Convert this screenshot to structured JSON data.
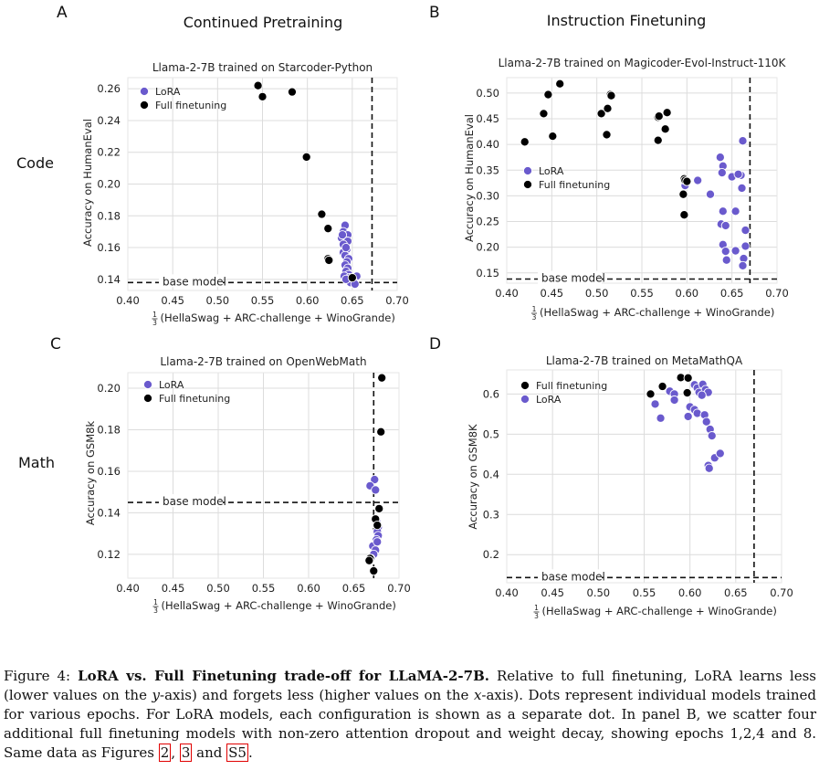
{
  "figure": {
    "panel_letters": [
      "A",
      "B",
      "C",
      "D"
    ],
    "column_titles": [
      "Continued Pretraining",
      "Instruction Finetuning"
    ],
    "row_labels": [
      "Code",
      "Math"
    ],
    "colors": {
      "lora": "#6a5acd",
      "full": "#000000",
      "grid": "#dcdcdc",
      "axis": "#333333"
    },
    "xlabel_frac": "1",
    "xlabel_frac_den": "3",
    "xlabel_text": "(HellaSwag + ARC-challenge + WinoGrande)",
    "legend_lora": "LoRA",
    "legend_full": "Full finetuning",
    "base_model_label": "base model"
  },
  "chart_data": [
    {
      "panel": "A",
      "type": "scatter",
      "title": "Llama-2-7B trained on Starcoder-Python",
      "xlabel": "1/3(HellaSwag + ARC-challenge + WinoGrande)",
      "ylabel": "Accuracy on HumanEval",
      "xlim": [
        0.4,
        0.7
      ],
      "ylim": [
        0.133,
        0.267
      ],
      "xticks": [
        0.4,
        0.45,
        0.5,
        0.55,
        0.6,
        0.65,
        0.7
      ],
      "xtick_labels": [
        "0.40",
        "0.45",
        "0.50",
        "0.55",
        "0.60",
        "0.65",
        "0.70"
      ],
      "yticks": [
        0.14,
        0.16,
        0.18,
        0.2,
        0.22,
        0.24,
        0.26
      ],
      "ytick_labels": [
        "0.14",
        "0.16",
        "0.18",
        "0.20",
        "0.22",
        "0.24",
        "0.26"
      ],
      "baseline_y": 0.138,
      "baseline_x": 0.672,
      "legend_order": [
        "lora",
        "full"
      ],
      "series": [
        {
          "name": "LoRA",
          "key": "lora",
          "points": [
            [
              0.642,
              0.174
            ],
            [
              0.64,
              0.17
            ],
            [
              0.645,
              0.168
            ],
            [
              0.638,
              0.166
            ],
            [
              0.643,
              0.163
            ],
            [
              0.641,
              0.161
            ],
            [
              0.644,
              0.159
            ],
            [
              0.64,
              0.157
            ],
            [
              0.642,
              0.155
            ],
            [
              0.646,
              0.153
            ],
            [
              0.644,
              0.151
            ],
            [
              0.642,
              0.149
            ],
            [
              0.645,
              0.147
            ],
            [
              0.643,
              0.145
            ],
            [
              0.646,
              0.143
            ],
            [
              0.641,
              0.142
            ],
            [
              0.649,
              0.14
            ],
            [
              0.655,
              0.142
            ],
            [
              0.651,
              0.139
            ],
            [
              0.648,
              0.138
            ],
            [
              0.653,
              0.137
            ],
            [
              0.647,
              0.141
            ],
            [
              0.643,
              0.14
            ],
            [
              0.639,
              0.168
            ],
            [
              0.645,
              0.164
            ],
            [
              0.64,
              0.162
            ],
            [
              0.643,
              0.16
            ]
          ]
        },
        {
          "name": "Full finetuning",
          "key": "full",
          "points": [
            [
              0.545,
              0.262
            ],
            [
              0.55,
              0.255
            ],
            [
              0.583,
              0.258
            ],
            [
              0.599,
              0.217
            ],
            [
              0.616,
              0.181
            ],
            [
              0.623,
              0.172
            ],
            [
              0.623,
              0.153
            ],
            [
              0.624,
              0.152
            ],
            [
              0.65,
              0.141
            ]
          ]
        }
      ]
    },
    {
      "panel": "B",
      "type": "scatter",
      "title": "Llama-2-7B trained on Magicoder-Evol-Instruct-110K",
      "xlabel": "1/3(HellaSwag + ARC-challenge + WinoGrande)",
      "ylabel": "Accuracy on HumanEval",
      "xlim": [
        0.4,
        0.7
      ],
      "ylim": [
        0.13,
        0.53
      ],
      "xticks": [
        0.4,
        0.45,
        0.5,
        0.55,
        0.6,
        0.65,
        0.7
      ],
      "xtick_labels": [
        "0.40",
        "0.45",
        "0.50",
        "0.55",
        "0.60",
        "0.65",
        "0.70"
      ],
      "yticks": [
        0.15,
        0.2,
        0.25,
        0.3,
        0.35,
        0.4,
        0.45,
        0.5
      ],
      "ytick_labels": [
        "0.15",
        "0.20",
        "0.25",
        "0.30",
        "0.35",
        "0.40",
        "0.45",
        "0.50"
      ],
      "baseline_y": 0.138,
      "baseline_x": 0.67,
      "legend_order": [
        "lora",
        "full"
      ],
      "series": [
        {
          "name": "LoRA",
          "key": "lora",
          "points": [
            [
              0.662,
              0.407
            ],
            [
              0.637,
              0.375
            ],
            [
              0.64,
              0.358
            ],
            [
              0.639,
              0.345
            ],
            [
              0.65,
              0.337
            ],
            [
              0.66,
              0.34
            ],
            [
              0.657,
              0.342
            ],
            [
              0.661,
              0.315
            ],
            [
              0.612,
              0.33
            ],
            [
              0.626,
              0.303
            ],
            [
              0.6,
              0.327
            ],
            [
              0.598,
              0.32
            ],
            [
              0.64,
              0.27
            ],
            [
              0.654,
              0.27
            ],
            [
              0.638,
              0.245
            ],
            [
              0.643,
              0.242
            ],
            [
              0.665,
              0.233
            ],
            [
              0.64,
              0.205
            ],
            [
              0.643,
              0.192
            ],
            [
              0.654,
              0.193
            ],
            [
              0.665,
              0.202
            ],
            [
              0.663,
              0.178
            ],
            [
              0.644,
              0.175
            ],
            [
              0.662,
              0.164
            ]
          ]
        },
        {
          "name": "Full finetuning",
          "key": "full",
          "points": [
            [
              0.42,
              0.405
            ],
            [
              0.441,
              0.46
            ],
            [
              0.446,
              0.497
            ],
            [
              0.459,
              0.518
            ],
            [
              0.451,
              0.416
            ],
            [
              0.505,
              0.46
            ],
            [
              0.512,
              0.47
            ],
            [
              0.515,
              0.497
            ],
            [
              0.516,
              0.495
            ],
            [
              0.511,
              0.419
            ],
            [
              0.568,
              0.453
            ],
            [
              0.569,
              0.455
            ],
            [
              0.578,
              0.462
            ],
            [
              0.576,
              0.43
            ],
            [
              0.568,
              0.408
            ],
            [
              0.597,
              0.333
            ],
            [
              0.598,
              0.33
            ],
            [
              0.6,
              0.328
            ],
            [
              0.596,
              0.303
            ],
            [
              0.597,
              0.263
            ]
          ]
        }
      ]
    },
    {
      "panel": "C",
      "type": "scatter",
      "title": "Llama-2-7B trained on OpenWebMath",
      "xlabel": "1/3(HellaSwag + ARC-challenge + WinoGrande)",
      "ylabel": "Accuracy on GSM8k",
      "xlim": [
        0.4,
        0.7
      ],
      "ylim": [
        0.1085,
        0.2075
      ],
      "xticks": [
        0.4,
        0.45,
        0.5,
        0.55,
        0.6,
        0.65,
        0.7
      ],
      "xtick_labels": [
        "0.40",
        "0.45",
        "0.50",
        "0.55",
        "0.60",
        "0.65",
        "0.70"
      ],
      "yticks": [
        0.12,
        0.14,
        0.16,
        0.18,
        0.2
      ],
      "ytick_labels": [
        "0.12",
        "0.14",
        "0.16",
        "0.18",
        "0.20"
      ],
      "baseline_y": 0.145,
      "baseline_x": 0.672,
      "legend_order": [
        "lora",
        "full"
      ],
      "series": [
        {
          "name": "LoRA",
          "key": "lora",
          "points": [
            [
              0.673,
              0.156
            ],
            [
              0.668,
              0.153
            ],
            [
              0.674,
              0.151
            ],
            [
              0.675,
              0.136
            ],
            [
              0.677,
              0.133
            ],
            [
              0.676,
              0.131
            ],
            [
              0.677,
              0.129
            ],
            [
              0.675,
              0.127
            ],
            [
              0.671,
              0.124
            ],
            [
              0.674,
              0.122
            ],
            [
              0.672,
              0.12
            ],
            [
              0.669,
              0.118
            ],
            [
              0.676,
              0.126
            ]
          ]
        },
        {
          "name": "Full finetuning",
          "key": "full",
          "points": [
            [
              0.681,
              0.205
            ],
            [
              0.68,
              0.179
            ],
            [
              0.678,
              0.142
            ],
            [
              0.674,
              0.137
            ],
            [
              0.676,
              0.134
            ],
            [
              0.668,
              0.118
            ],
            [
              0.667,
              0.117
            ],
            [
              0.672,
              0.112
            ]
          ]
        }
      ]
    },
    {
      "panel": "D",
      "type": "scatter",
      "title": "Llama-2-7B trained on MetaMathQA",
      "xlabel": "1/3(HellaSwag + ARC-challenge + WinoGrande)",
      "ylabel": "Accuracy on GSM8K",
      "xlim": [
        0.4,
        0.7
      ],
      "ylim": [
        0.13,
        0.66
      ],
      "xticks": [
        0.4,
        0.45,
        0.5,
        0.55,
        0.6,
        0.65,
        0.7
      ],
      "xtick_labels": [
        "0.40",
        "0.45",
        "0.50",
        "0.55",
        "0.60",
        "0.65",
        "0.70"
      ],
      "yticks": [
        0.2,
        0.3,
        0.4,
        0.5,
        0.6
      ],
      "ytick_labels": [
        "0.2",
        "0.3",
        "0.4",
        "0.5",
        "0.6"
      ],
      "baseline_y": 0.143,
      "baseline_x": 0.67,
      "legend_order": [
        "full",
        "lora"
      ],
      "series": [
        {
          "name": "Full finetuning",
          "key": "full",
          "points": [
            [
              0.557,
              0.6
            ],
            [
              0.57,
              0.619
            ],
            [
              0.59,
              0.641
            ],
            [
              0.598,
              0.64
            ],
            [
              0.597,
              0.603
            ]
          ]
        },
        {
          "name": "LoRA",
          "key": "lora",
          "points": [
            [
              0.562,
              0.575
            ],
            [
              0.568,
              0.54
            ],
            [
              0.578,
              0.607
            ],
            [
              0.583,
              0.6
            ],
            [
              0.583,
              0.585
            ],
            [
              0.605,
              0.623
            ],
            [
              0.608,
              0.615
            ],
            [
              0.61,
              0.604
            ],
            [
              0.614,
              0.624
            ],
            [
              0.617,
              0.611
            ],
            [
              0.62,
              0.604
            ],
            [
              0.613,
              0.597
            ],
            [
              0.6,
              0.568
            ],
            [
              0.605,
              0.561
            ],
            [
              0.608,
              0.552
            ],
            [
              0.598,
              0.544
            ],
            [
              0.616,
              0.548
            ],
            [
              0.618,
              0.531
            ],
            [
              0.622,
              0.512
            ],
            [
              0.624,
              0.496
            ],
            [
              0.627,
              0.441
            ],
            [
              0.633,
              0.452
            ],
            [
              0.62,
              0.422
            ],
            [
              0.621,
              0.415
            ]
          ]
        }
      ]
    }
  ],
  "caption": {
    "label": "Figure 4: ",
    "bold": "LoRA vs. Full Finetuning trade-off for LLaMA-2-7B.",
    "text1": " Relative to full finetuning, LoRA learns less (lower values on the ",
    "y": "y",
    "text2": "-axis) and forgets less (higher values on the ",
    "x": "x",
    "text3": "-axis). Dots represent individual models trained for various epochs. For LoRA models, each configuration is shown as a separate dot. In panel B, we scatter four additional full finetuning models with non-zero attention dropout and weight decay, showing epochs 1,2,4 and 8. Same data as Figures ",
    "ref1": "2",
    "sep1": ", ",
    "ref2": "3",
    "sep2": " and ",
    "ref3": "S5",
    "end": "."
  }
}
